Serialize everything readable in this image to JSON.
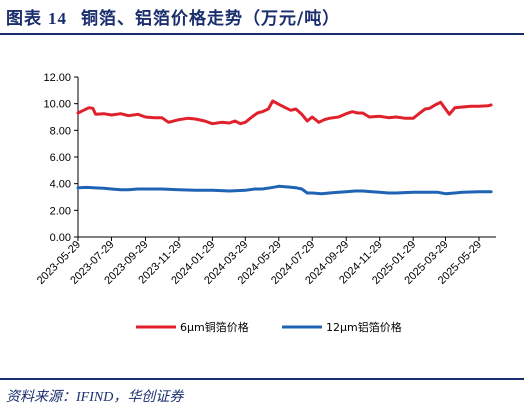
{
  "header": {
    "label": "图表",
    "number": "14",
    "title": "铜箔、铝箔价格走势（万元/吨）"
  },
  "footer": {
    "source": "资料来源：IFIND，华创证券"
  },
  "chart_data": {
    "type": "line",
    "title": "铜箔、铝箔价格走势（万元/吨）",
    "ylim": [
      0,
      12
    ],
    "yticks": [
      "0.00",
      "2.00",
      "4.00",
      "6.00",
      "8.00",
      "10.00",
      "12.00"
    ],
    "xlim": [
      "2023-05-29",
      "2025-06-29"
    ],
    "xticks": [
      "2023-05-29",
      "2023-07-29",
      "2023-09-29",
      "2023-11-29",
      "2024-01-29",
      "2024-03-29",
      "2024-05-29",
      "2024-07-29",
      "2024-09-29",
      "2024-11-29",
      "2025-01-29",
      "2025-03-29",
      "2025-05-29"
    ],
    "legend_position": "bottom-center",
    "grid": false,
    "colors": {
      "copper": "#e0202a",
      "aluminum": "#1f64b4"
    },
    "series": [
      {
        "name": "6μm铜箔价格",
        "points": [
          [
            "2023-05-29",
            9.3
          ],
          [
            "2023-06-08",
            9.5
          ],
          [
            "2023-06-18",
            9.7
          ],
          [
            "2023-06-25",
            9.65
          ],
          [
            "2023-06-30",
            9.2
          ],
          [
            "2023-07-15",
            9.25
          ],
          [
            "2023-07-29",
            9.15
          ],
          [
            "2023-08-15",
            9.25
          ],
          [
            "2023-08-29",
            9.1
          ],
          [
            "2023-09-15",
            9.2
          ],
          [
            "2023-09-29",
            9.0
          ],
          [
            "2023-10-15",
            8.95
          ],
          [
            "2023-10-29",
            8.95
          ],
          [
            "2023-11-10",
            8.6
          ],
          [
            "2023-11-29",
            8.8
          ],
          [
            "2023-12-15",
            8.9
          ],
          [
            "2023-12-29",
            8.85
          ],
          [
            "2024-01-15",
            8.7
          ],
          [
            "2024-01-29",
            8.5
          ],
          [
            "2024-02-15",
            8.6
          ],
          [
            "2024-02-29",
            8.55
          ],
          [
            "2024-03-10",
            8.7
          ],
          [
            "2024-03-20",
            8.5
          ],
          [
            "2024-03-29",
            8.6
          ],
          [
            "2024-04-10",
            9.0
          ],
          [
            "2024-04-20",
            9.3
          ],
          [
            "2024-04-29",
            9.4
          ],
          [
            "2024-05-10",
            9.6
          ],
          [
            "2024-05-18",
            10.2
          ],
          [
            "2024-05-29",
            9.95
          ],
          [
            "2024-06-10",
            9.7
          ],
          [
            "2024-06-20",
            9.5
          ],
          [
            "2024-06-29",
            9.6
          ],
          [
            "2024-07-10",
            9.2
          ],
          [
            "2024-07-20",
            8.7
          ],
          [
            "2024-07-29",
            9.0
          ],
          [
            "2024-08-10",
            8.6
          ],
          [
            "2024-08-20",
            8.8
          ],
          [
            "2024-08-29",
            8.9
          ],
          [
            "2024-09-15",
            9.0
          ],
          [
            "2024-09-29",
            9.25
          ],
          [
            "2024-10-10",
            9.4
          ],
          [
            "2024-10-20",
            9.3
          ],
          [
            "2024-10-29",
            9.3
          ],
          [
            "2024-11-10",
            9.0
          ],
          [
            "2024-11-29",
            9.05
          ],
          [
            "2024-12-15",
            8.95
          ],
          [
            "2024-12-29",
            9.0
          ],
          [
            "2025-01-15",
            8.9
          ],
          [
            "2025-01-29",
            8.9
          ],
          [
            "2025-02-10",
            9.3
          ],
          [
            "2025-02-20",
            9.6
          ],
          [
            "2025-02-28",
            9.65
          ],
          [
            "2025-03-10",
            9.9
          ],
          [
            "2025-03-20",
            10.1
          ],
          [
            "2025-03-29",
            9.6
          ],
          [
            "2025-04-05",
            9.2
          ],
          [
            "2025-04-15",
            9.7
          ],
          [
            "2025-04-29",
            9.75
          ],
          [
            "2025-05-15",
            9.8
          ],
          [
            "2025-05-29",
            9.8
          ],
          [
            "2025-06-15",
            9.85
          ],
          [
            "2025-06-20",
            9.9
          ]
        ]
      },
      {
        "name": "12μm铝箔价格",
        "points": [
          [
            "2023-05-29",
            3.7
          ],
          [
            "2023-06-15",
            3.72
          ],
          [
            "2023-06-29",
            3.68
          ],
          [
            "2023-07-15",
            3.65
          ],
          [
            "2023-07-29",
            3.6
          ],
          [
            "2023-08-15",
            3.55
          ],
          [
            "2023-08-29",
            3.55
          ],
          [
            "2023-09-15",
            3.6
          ],
          [
            "2023-09-29",
            3.6
          ],
          [
            "2023-10-29",
            3.6
          ],
          [
            "2023-11-29",
            3.55
          ],
          [
            "2023-12-29",
            3.5
          ],
          [
            "2024-01-29",
            3.5
          ],
          [
            "2024-02-29",
            3.45
          ],
          [
            "2024-03-29",
            3.5
          ],
          [
            "2024-04-15",
            3.6
          ],
          [
            "2024-04-29",
            3.6
          ],
          [
            "2024-05-15",
            3.7
          ],
          [
            "2024-05-29",
            3.8
          ],
          [
            "2024-06-15",
            3.75
          ],
          [
            "2024-06-29",
            3.7
          ],
          [
            "2024-07-10",
            3.6
          ],
          [
            "2024-07-20",
            3.3
          ],
          [
            "2024-07-29",
            3.3
          ],
          [
            "2024-08-15",
            3.25
          ],
          [
            "2024-08-29",
            3.3
          ],
          [
            "2024-09-15",
            3.35
          ],
          [
            "2024-09-29",
            3.4
          ],
          [
            "2024-10-15",
            3.45
          ],
          [
            "2024-10-29",
            3.45
          ],
          [
            "2024-11-15",
            3.4
          ],
          [
            "2024-11-29",
            3.35
          ],
          [
            "2024-12-15",
            3.3
          ],
          [
            "2024-12-29",
            3.3
          ],
          [
            "2025-01-29",
            3.35
          ],
          [
            "2025-02-28",
            3.35
          ],
          [
            "2025-03-15",
            3.35
          ],
          [
            "2025-03-29",
            3.25
          ],
          [
            "2025-04-15",
            3.3
          ],
          [
            "2025-04-29",
            3.35
          ],
          [
            "2025-05-29",
            3.4
          ],
          [
            "2025-06-20",
            3.4
          ]
        ]
      }
    ]
  }
}
